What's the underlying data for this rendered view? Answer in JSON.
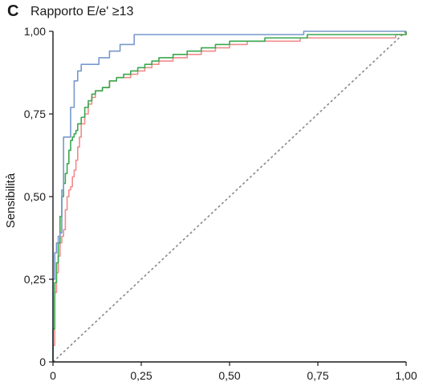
{
  "chart_data": {
    "type": "line",
    "panel_letter": "C",
    "title": "Rapporto E/e' ≥13",
    "xlabel": "",
    "ylabel": "Sensibilità",
    "xlim": [
      0,
      1
    ],
    "ylim": [
      0,
      1
    ],
    "xticks": [
      "0",
      "0,25",
      "0,50",
      "0,75",
      "1,00"
    ],
    "yticks": [
      "0",
      "0,25",
      "0,50",
      "0,75",
      "1,00"
    ],
    "grid": false,
    "legend": "none",
    "series": [
      {
        "color": "#f08c8c",
        "style": "step",
        "points": [
          [
            0,
            0
          ],
          [
            0,
            0.05
          ],
          [
            0.005,
            0.21
          ],
          [
            0.01,
            0.27
          ],
          [
            0.015,
            0.32
          ],
          [
            0.02,
            0.36
          ],
          [
            0.025,
            0.38
          ],
          [
            0.03,
            0.4
          ],
          [
            0.035,
            0.46
          ],
          [
            0.04,
            0.5
          ],
          [
            0.045,
            0.52
          ],
          [
            0.05,
            0.53
          ],
          [
            0.055,
            0.56
          ],
          [
            0.06,
            0.58
          ],
          [
            0.065,
            0.61
          ],
          [
            0.07,
            0.65
          ],
          [
            0.075,
            0.68
          ],
          [
            0.08,
            0.72
          ],
          [
            0.09,
            0.75
          ],
          [
            0.1,
            0.78
          ],
          [
            0.11,
            0.8
          ],
          [
            0.12,
            0.82
          ],
          [
            0.14,
            0.83
          ],
          [
            0.16,
            0.85
          ],
          [
            0.18,
            0.86
          ],
          [
            0.2,
            0.86
          ],
          [
            0.22,
            0.87
          ],
          [
            0.24,
            0.88
          ],
          [
            0.26,
            0.89
          ],
          [
            0.28,
            0.9
          ],
          [
            0.3,
            0.91
          ],
          [
            0.34,
            0.92
          ],
          [
            0.38,
            0.93
          ],
          [
            0.42,
            0.94
          ],
          [
            0.46,
            0.95
          ],
          [
            0.5,
            0.96
          ],
          [
            0.55,
            0.97
          ],
          [
            0.6,
            0.97
          ],
          [
            0.7,
            0.98
          ],
          [
            0.8,
            0.98
          ],
          [
            0.9,
            0.98
          ],
          [
            0.97,
            0.99
          ],
          [
            1,
            1
          ]
        ]
      },
      {
        "color": "#3aa84e",
        "style": "step",
        "points": [
          [
            0,
            0
          ],
          [
            0,
            0.1
          ],
          [
            0.005,
            0.24
          ],
          [
            0.01,
            0.3
          ],
          [
            0.015,
            0.36
          ],
          [
            0.02,
            0.44
          ],
          [
            0.025,
            0.5
          ],
          [
            0.03,
            0.54
          ],
          [
            0.035,
            0.57
          ],
          [
            0.04,
            0.6
          ],
          [
            0.045,
            0.64
          ],
          [
            0.05,
            0.67
          ],
          [
            0.055,
            0.68
          ],
          [
            0.06,
            0.69
          ],
          [
            0.065,
            0.7
          ],
          [
            0.07,
            0.72
          ],
          [
            0.08,
            0.74
          ],
          [
            0.09,
            0.77
          ],
          [
            0.1,
            0.79
          ],
          [
            0.11,
            0.81
          ],
          [
            0.12,
            0.82
          ],
          [
            0.14,
            0.83
          ],
          [
            0.16,
            0.85
          ],
          [
            0.18,
            0.86
          ],
          [
            0.2,
            0.87
          ],
          [
            0.22,
            0.88
          ],
          [
            0.24,
            0.89
          ],
          [
            0.26,
            0.9
          ],
          [
            0.28,
            0.91
          ],
          [
            0.3,
            0.92
          ],
          [
            0.34,
            0.93
          ],
          [
            0.38,
            0.94
          ],
          [
            0.42,
            0.95
          ],
          [
            0.46,
            0.96
          ],
          [
            0.5,
            0.97
          ],
          [
            0.55,
            0.97
          ],
          [
            0.6,
            0.98
          ],
          [
            0.7,
            0.98
          ],
          [
            0.72,
            0.99
          ],
          [
            0.8,
            0.99
          ],
          [
            0.9,
            0.99
          ],
          [
            1,
            1
          ]
        ]
      },
      {
        "color": "#7898cc",
        "style": "step",
        "points": [
          [
            0,
            0
          ],
          [
            0,
            0.25
          ],
          [
            0.005,
            0.33
          ],
          [
            0.01,
            0.36
          ],
          [
            0.015,
            0.38
          ],
          [
            0.02,
            0.39
          ],
          [
            0.025,
            0.52
          ],
          [
            0.03,
            0.68
          ],
          [
            0.04,
            0.68
          ],
          [
            0.05,
            0.77
          ],
          [
            0.06,
            0.85
          ],
          [
            0.07,
            0.88
          ],
          [
            0.08,
            0.9
          ],
          [
            0.1,
            0.9
          ],
          [
            0.13,
            0.92
          ],
          [
            0.16,
            0.94
          ],
          [
            0.19,
            0.96
          ],
          [
            0.21,
            0.96
          ],
          [
            0.23,
            0.99
          ],
          [
            0.28,
            0.99
          ],
          [
            0.35,
            0.99
          ],
          [
            0.5,
            0.99
          ],
          [
            0.6,
            0.99
          ],
          [
            0.7,
            0.99
          ],
          [
            0.71,
            1
          ],
          [
            0.8,
            1
          ],
          [
            0.9,
            1
          ],
          [
            1,
            1
          ]
        ]
      }
    ],
    "reference_line": {
      "from": [
        0,
        0
      ],
      "to": [
        1,
        1
      ],
      "style": "dashed",
      "color": "#888888"
    }
  }
}
